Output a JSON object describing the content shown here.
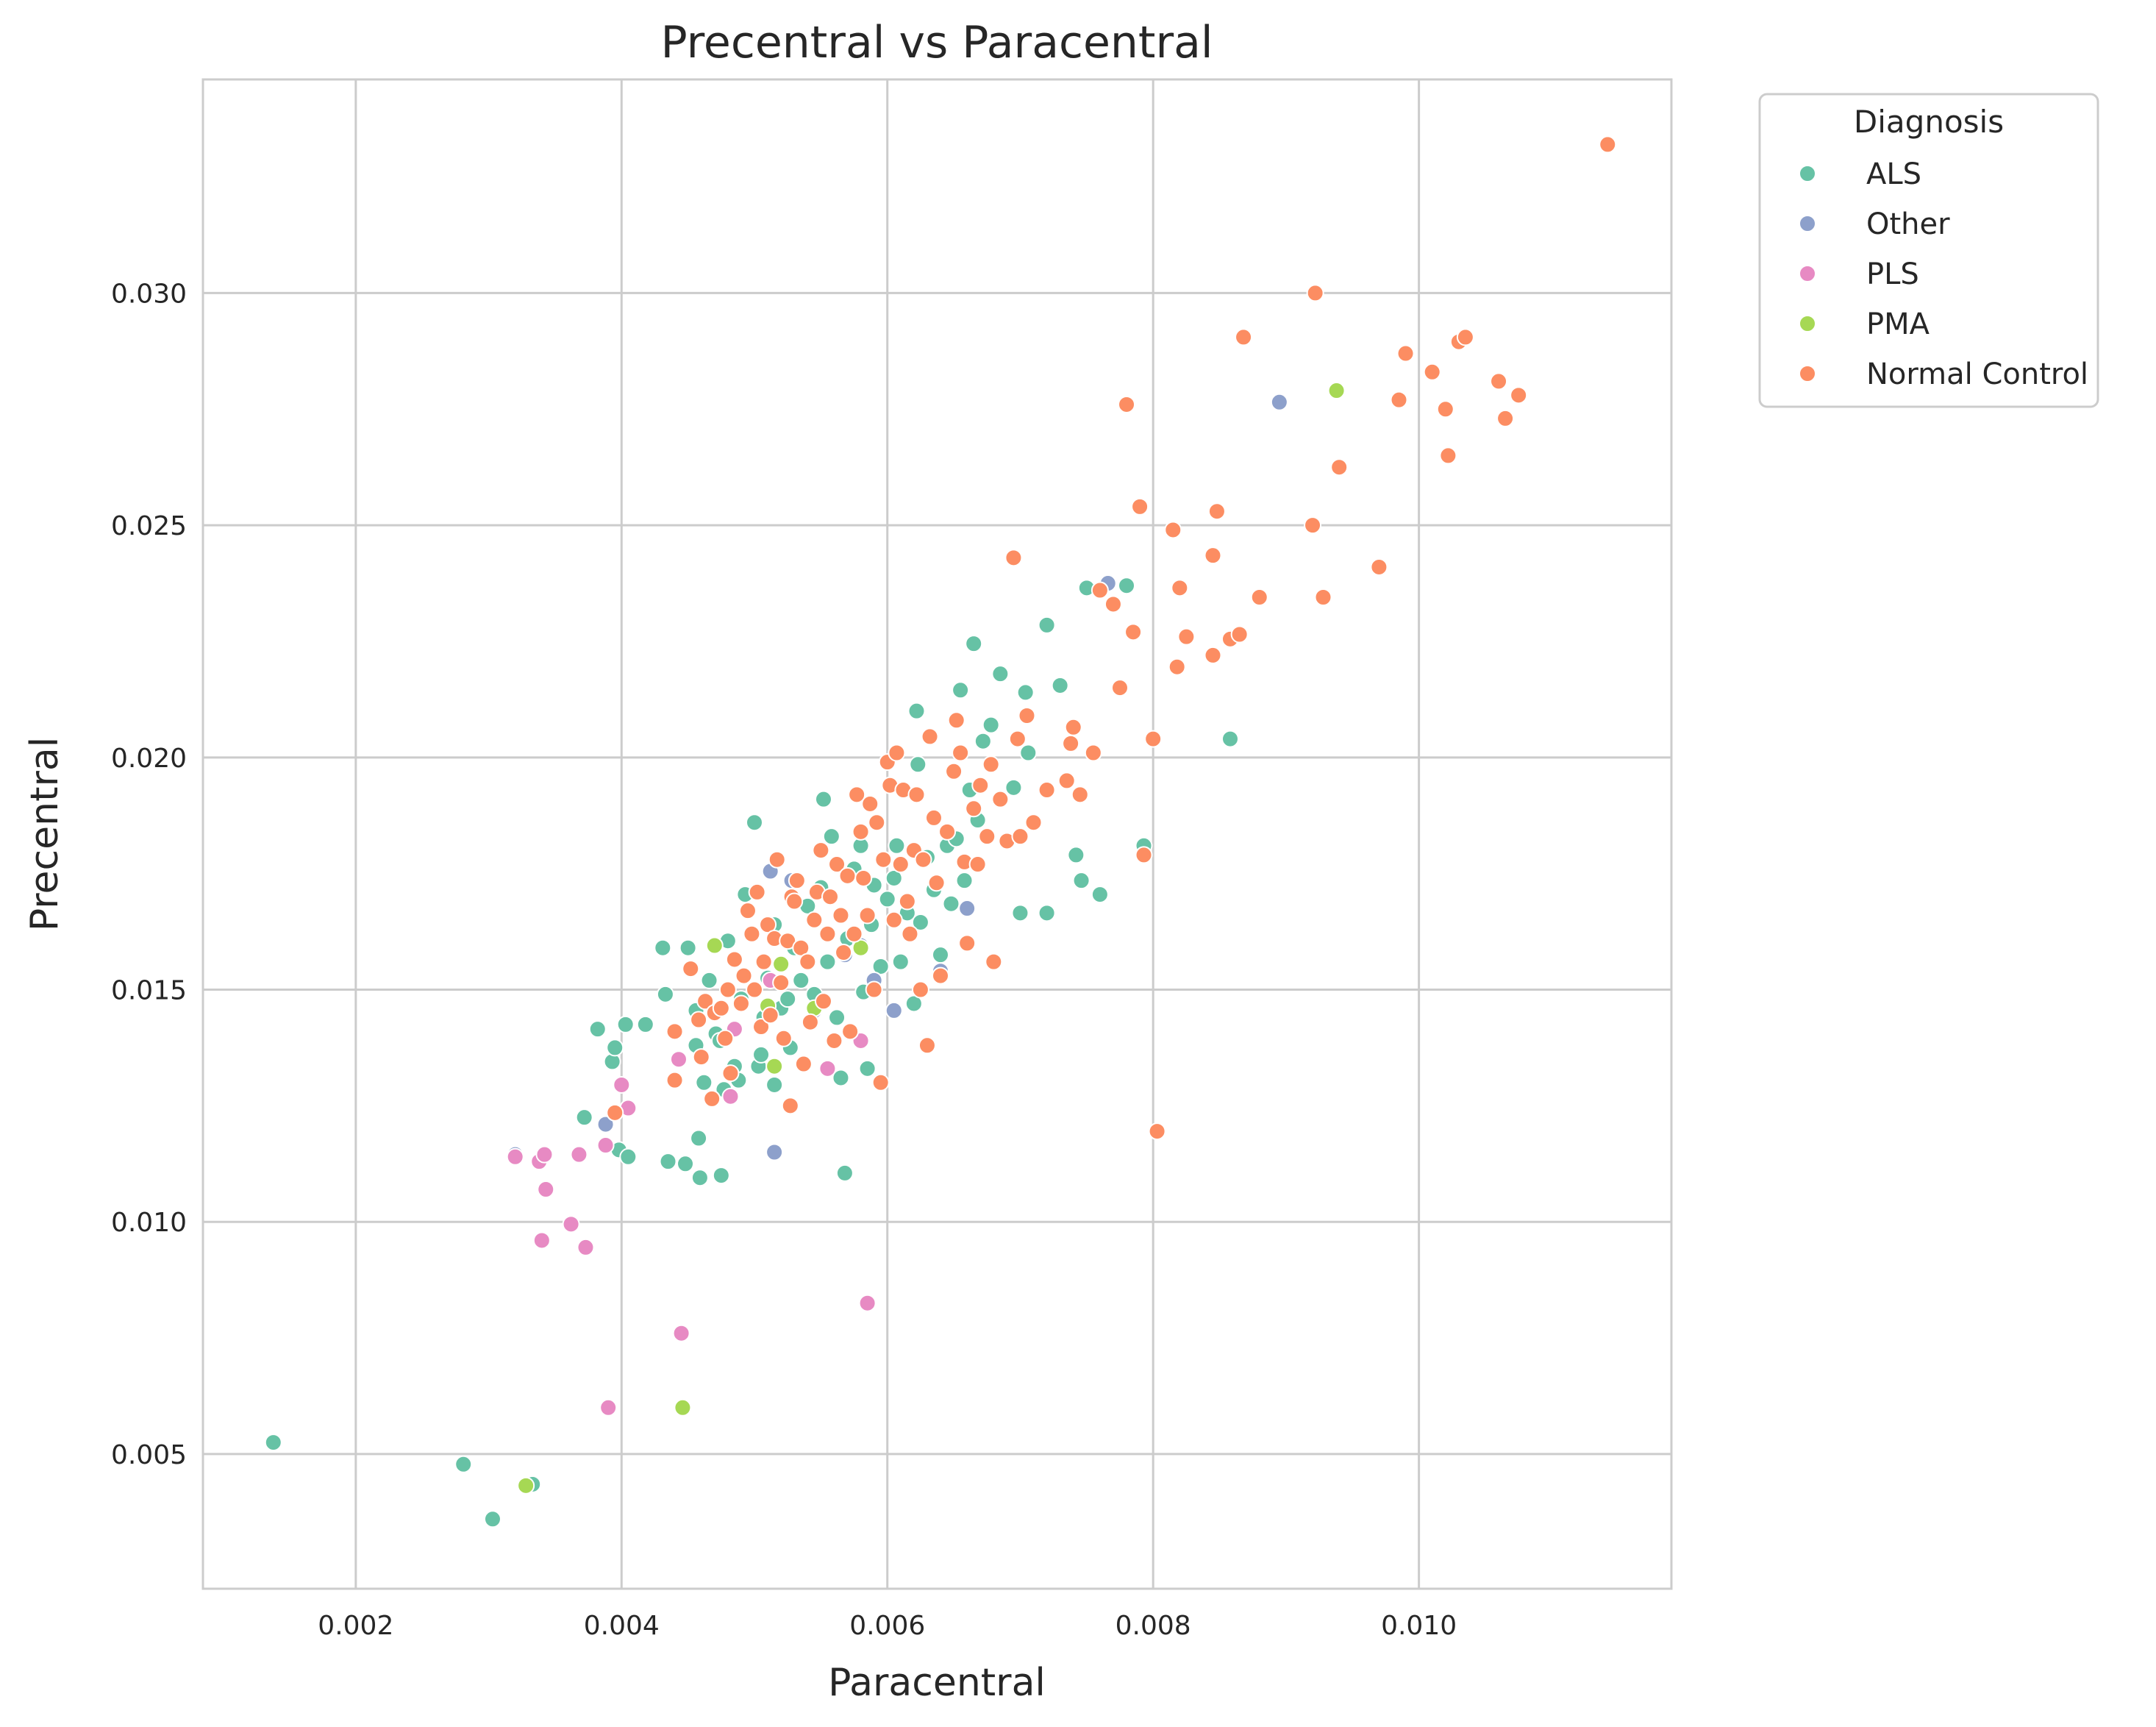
{
  "chart_data": {
    "type": "scatter",
    "title": "Precentral vs Paracentral",
    "xlabel": "Paracentral",
    "ylabel": "Precentral",
    "xlim": [
      0.00085,
      0.0119
    ],
    "ylim": [
      0.0021,
      0.0346
    ],
    "xticks": [
      0.002,
      0.004,
      0.006,
      0.008,
      0.01
    ],
    "xtick_labels": [
      "0.002",
      "0.004",
      "0.006",
      "0.008",
      "0.010"
    ],
    "yticks": [
      0.005,
      0.01,
      0.015,
      0.02,
      0.025,
      0.03
    ],
    "ytick_labels": [
      "0.005",
      "0.010",
      "0.015",
      "0.020",
      "0.025",
      "0.030"
    ],
    "grid": true,
    "legend": {
      "title": "Diagnosis",
      "placement": "outside-top-right"
    },
    "series": [
      {
        "name": "ALS",
        "color": "#66c2a5",
        "points": [
          [
            0.00138,
            0.00525
          ],
          [
            0.00281,
            0.00478
          ],
          [
            0.00303,
            0.0036
          ],
          [
            0.00333,
            0.00435
          ],
          [
            0.0032,
            0.01145
          ],
          [
            0.00372,
            0.01225
          ],
          [
            0.00382,
            0.01415
          ],
          [
            0.00393,
            0.01345
          ],
          [
            0.00395,
            0.01375
          ],
          [
            0.00398,
            0.01155
          ],
          [
            0.00403,
            0.01425
          ],
          [
            0.00405,
            0.0114
          ],
          [
            0.00418,
            0.01425
          ],
          [
            0.00431,
            0.0159
          ],
          [
            0.00433,
            0.0149
          ],
          [
            0.00435,
            0.0113
          ],
          [
            0.00448,
            0.01125
          ],
          [
            0.0045,
            0.0159
          ],
          [
            0.00456,
            0.0138
          ],
          [
            0.00456,
            0.01455
          ],
          [
            0.00458,
            0.0118
          ],
          [
            0.00459,
            0.01095
          ],
          [
            0.00462,
            0.013
          ],
          [
            0.00466,
            0.0152
          ],
          [
            0.00471,
            0.01405
          ],
          [
            0.00474,
            0.0139
          ],
          [
            0.00475,
            0.011
          ],
          [
            0.00477,
            0.01285
          ],
          [
            0.0048,
            0.01605
          ],
          [
            0.00485,
            0.01335
          ],
          [
            0.00488,
            0.01305
          ],
          [
            0.0049,
            0.0148
          ],
          [
            0.00493,
            0.01705
          ],
          [
            0.005,
            0.0186
          ],
          [
            0.00503,
            0.01335
          ],
          [
            0.00505,
            0.0136
          ],
          [
            0.00507,
            0.0144
          ],
          [
            0.0051,
            0.01525
          ],
          [
            0.00515,
            0.0164
          ],
          [
            0.00515,
            0.01295
          ],
          [
            0.0052,
            0.0146
          ],
          [
            0.00525,
            0.0148
          ],
          [
            0.00527,
            0.01375
          ],
          [
            0.0053,
            0.0159
          ],
          [
            0.00535,
            0.0152
          ],
          [
            0.0054,
            0.0168
          ],
          [
            0.00545,
            0.0149
          ],
          [
            0.0055,
            0.0172
          ],
          [
            0.00552,
            0.0191
          ],
          [
            0.00555,
            0.0156
          ],
          [
            0.00558,
            0.0183
          ],
          [
            0.00562,
            0.0144
          ],
          [
            0.00565,
            0.0131
          ],
          [
            0.00568,
            0.01105
          ],
          [
            0.0057,
            0.0161
          ],
          [
            0.00575,
            0.0176
          ],
          [
            0.0058,
            0.0181
          ],
          [
            0.00582,
            0.01495
          ],
          [
            0.00585,
            0.0133
          ],
          [
            0.00588,
            0.0164
          ],
          [
            0.0059,
            0.01725
          ],
          [
            0.00595,
            0.0155
          ],
          [
            0.006,
            0.01695
          ],
          [
            0.00605,
            0.0174
          ],
          [
            0.00607,
            0.0181
          ],
          [
            0.0061,
            0.0156
          ],
          [
            0.00615,
            0.01665
          ],
          [
            0.0062,
            0.0147
          ],
          [
            0.00622,
            0.021
          ],
          [
            0.00623,
            0.01985
          ],
          [
            0.00625,
            0.01645
          ],
          [
            0.0063,
            0.01785
          ],
          [
            0.00635,
            0.01715
          ],
          [
            0.0064,
            0.01575
          ],
          [
            0.00645,
            0.0181
          ],
          [
            0.00648,
            0.01685
          ],
          [
            0.00652,
            0.01825
          ],
          [
            0.00655,
            0.02145
          ],
          [
            0.00658,
            0.01735
          ],
          [
            0.00662,
            0.0193
          ],
          [
            0.00665,
            0.02245
          ],
          [
            0.00668,
            0.01865
          ],
          [
            0.00672,
            0.02035
          ],
          [
            0.00678,
            0.0207
          ],
          [
            0.00685,
            0.0218
          ],
          [
            0.00695,
            0.01935
          ],
          [
            0.007,
            0.01665
          ],
          [
            0.00704,
            0.0214
          ],
          [
            0.00706,
            0.0201
          ],
          [
            0.0072,
            0.01665
          ],
          [
            0.0072,
            0.02285
          ],
          [
            0.0073,
            0.02155
          ],
          [
            0.00742,
            0.0179
          ],
          [
            0.00746,
            0.01735
          ],
          [
            0.0075,
            0.02365
          ],
          [
            0.0076,
            0.01705
          ],
          [
            0.0078,
            0.0237
          ],
          [
            0.00793,
            0.0181
          ],
          [
            0.00858,
            0.0204
          ]
        ]
      },
      {
        "name": "Other",
        "color": "#8da0cb",
        "points": [
          [
            0.0032,
            0.01145
          ],
          [
            0.00388,
            0.0121
          ],
          [
            0.00512,
            0.01755
          ],
          [
            0.00515,
            0.0115
          ],
          [
            0.00528,
            0.01735
          ],
          [
            0.00545,
            0.01455
          ],
          [
            0.00568,
            0.01575
          ],
          [
            0.0058,
            0.01595
          ],
          [
            0.0059,
            0.0152
          ],
          [
            0.00605,
            0.01455
          ],
          [
            0.0064,
            0.0154
          ],
          [
            0.0066,
            0.01675
          ],
          [
            0.00766,
            0.02375
          ],
          [
            0.00895,
            0.02765
          ]
        ]
      },
      {
        "name": "PLS",
        "color": "#e78ac3",
        "points": [
          [
            0.0032,
            0.0114
          ],
          [
            0.00338,
            0.0113
          ],
          [
            0.0034,
            0.0096
          ],
          [
            0.00342,
            0.01145
          ],
          [
            0.00343,
            0.0107
          ],
          [
            0.00362,
            0.00995
          ],
          [
            0.00368,
            0.01145
          ],
          [
            0.00373,
            0.00945
          ],
          [
            0.00388,
            0.01165
          ],
          [
            0.0039,
            0.006
          ],
          [
            0.004,
            0.01295
          ],
          [
            0.00405,
            0.01245
          ],
          [
            0.00443,
            0.0135
          ],
          [
            0.00445,
            0.0076
          ],
          [
            0.00482,
            0.0127
          ],
          [
            0.00485,
            0.01415
          ],
          [
            0.00512,
            0.0152
          ],
          [
            0.00555,
            0.0133
          ],
          [
            0.0058,
            0.0139
          ],
          [
            0.00585,
            0.00825
          ]
        ]
      },
      {
        "name": "PMA",
        "color": "#a6d854",
        "points": [
          [
            0.00328,
            0.00432
          ],
          [
            0.00446,
            0.006
          ],
          [
            0.0047,
            0.01595
          ],
          [
            0.0051,
            0.01465
          ],
          [
            0.00515,
            0.01335
          ],
          [
            0.0052,
            0.01555
          ],
          [
            0.00545,
            0.0146
          ],
          [
            0.0058,
            0.0159
          ],
          [
            0.00938,
            0.0279
          ]
        ]
      },
      {
        "name": "Normal Control",
        "color": "#fc8d62",
        "points": [
          [
            0.00395,
            0.01235
          ],
          [
            0.0044,
            0.0141
          ],
          [
            0.0044,
            0.01305
          ],
          [
            0.00452,
            0.01545
          ],
          [
            0.00458,
            0.01435
          ],
          [
            0.0046,
            0.01355
          ],
          [
            0.00463,
            0.01475
          ],
          [
            0.00468,
            0.01265
          ],
          [
            0.0047,
            0.0145
          ],
          [
            0.00475,
            0.0146
          ],
          [
            0.00478,
            0.01395
          ],
          [
            0.0048,
            0.015
          ],
          [
            0.00482,
            0.0132
          ],
          [
            0.00485,
            0.01565
          ],
          [
            0.0049,
            0.0147
          ],
          [
            0.00492,
            0.0153
          ],
          [
            0.00495,
            0.0167
          ],
          [
            0.00498,
            0.0162
          ],
          [
            0.005,
            0.015
          ],
          [
            0.00502,
            0.0171
          ],
          [
            0.00505,
            0.0142
          ],
          [
            0.00507,
            0.0156
          ],
          [
            0.0051,
            0.0164
          ],
          [
            0.00512,
            0.01445
          ],
          [
            0.00515,
            0.0161
          ],
          [
            0.00517,
            0.0178
          ],
          [
            0.0052,
            0.01515
          ],
          [
            0.00522,
            0.01395
          ],
          [
            0.00525,
            0.01605
          ],
          [
            0.00527,
            0.0125
          ],
          [
            0.00528,
            0.017
          ],
          [
            0.0053,
            0.0169
          ],
          [
            0.00532,
            0.01735
          ],
          [
            0.00535,
            0.0159
          ],
          [
            0.00537,
            0.0134
          ],
          [
            0.0054,
            0.0156
          ],
          [
            0.00542,
            0.0143
          ],
          [
            0.00545,
            0.0165
          ],
          [
            0.00547,
            0.0171
          ],
          [
            0.0055,
            0.018
          ],
          [
            0.00552,
            0.01475
          ],
          [
            0.00555,
            0.0162
          ],
          [
            0.00557,
            0.017
          ],
          [
            0.0056,
            0.0139
          ],
          [
            0.00562,
            0.0177
          ],
          [
            0.00565,
            0.0166
          ],
          [
            0.00567,
            0.0158
          ],
          [
            0.0057,
            0.01745
          ],
          [
            0.00572,
            0.0141
          ],
          [
            0.00575,
            0.0162
          ],
          [
            0.00577,
            0.0192
          ],
          [
            0.0058,
            0.0184
          ],
          [
            0.00582,
            0.0174
          ],
          [
            0.00585,
            0.0166
          ],
          [
            0.00587,
            0.019
          ],
          [
            0.0059,
            0.015
          ],
          [
            0.00592,
            0.0186
          ],
          [
            0.00595,
            0.013
          ],
          [
            0.00597,
            0.0178
          ],
          [
            0.006,
            0.0199
          ],
          [
            0.00602,
            0.0194
          ],
          [
            0.00605,
            0.0165
          ],
          [
            0.00607,
            0.0201
          ],
          [
            0.0061,
            0.0177
          ],
          [
            0.00612,
            0.0193
          ],
          [
            0.00615,
            0.0169
          ],
          [
            0.00617,
            0.0162
          ],
          [
            0.0062,
            0.018
          ],
          [
            0.00622,
            0.0192
          ],
          [
            0.00625,
            0.015
          ],
          [
            0.00627,
            0.0178
          ],
          [
            0.0063,
            0.0138
          ],
          [
            0.00632,
            0.02045
          ],
          [
            0.00635,
            0.0187
          ],
          [
            0.00637,
            0.0173
          ],
          [
            0.0064,
            0.0153
          ],
          [
            0.00645,
            0.0184
          ],
          [
            0.0065,
            0.0197
          ],
          [
            0.00652,
            0.0208
          ],
          [
            0.00655,
            0.0201
          ],
          [
            0.00658,
            0.01775
          ],
          [
            0.0066,
            0.016
          ],
          [
            0.00665,
            0.0189
          ],
          [
            0.00668,
            0.0177
          ],
          [
            0.0067,
            0.0194
          ],
          [
            0.00675,
            0.0183
          ],
          [
            0.00678,
            0.01985
          ],
          [
            0.0068,
            0.0156
          ],
          [
            0.00685,
            0.0191
          ],
          [
            0.0069,
            0.0182
          ],
          [
            0.00695,
            0.0243
          ],
          [
            0.00698,
            0.0204
          ],
          [
            0.007,
            0.0183
          ],
          [
            0.00705,
            0.0209
          ],
          [
            0.0071,
            0.0186
          ],
          [
            0.0072,
            0.0193
          ],
          [
            0.00735,
            0.0195
          ],
          [
            0.00738,
            0.0203
          ],
          [
            0.0074,
            0.02065
          ],
          [
            0.00745,
            0.0192
          ],
          [
            0.00755,
            0.0201
          ],
          [
            0.0076,
            0.0236
          ],
          [
            0.0077,
            0.0233
          ],
          [
            0.00775,
            0.0215
          ],
          [
            0.0078,
            0.0276
          ],
          [
            0.00785,
            0.0227
          ],
          [
            0.0079,
            0.0254
          ],
          [
            0.00793,
            0.0179
          ],
          [
            0.008,
            0.0204
          ],
          [
            0.00803,
            0.01195
          ],
          [
            0.00815,
            0.0249
          ],
          [
            0.00818,
            0.02195
          ],
          [
            0.0082,
            0.02365
          ],
          [
            0.00825,
            0.0226
          ],
          [
            0.00845,
            0.0222
          ],
          [
            0.00845,
            0.02435
          ],
          [
            0.00848,
            0.0253
          ],
          [
            0.00858,
            0.02255
          ],
          [
            0.00865,
            0.02265
          ],
          [
            0.00868,
            0.02905
          ],
          [
            0.0088,
            0.02345
          ],
          [
            0.0092,
            0.025
          ],
          [
            0.00922,
            0.03
          ],
          [
            0.00928,
            0.02345
          ],
          [
            0.0094,
            0.02625
          ],
          [
            0.0097,
            0.0241
          ],
          [
            0.00985,
            0.0277
          ],
          [
            0.0099,
            0.0287
          ],
          [
            0.0101,
            0.0283
          ],
          [
            0.0102,
            0.0275
          ],
          [
            0.01022,
            0.0265
          ],
          [
            0.0103,
            0.02895
          ],
          [
            0.01035,
            0.02905
          ],
          [
            0.0106,
            0.0281
          ],
          [
            0.01065,
            0.0273
          ],
          [
            0.01075,
            0.0278
          ],
          [
            0.01142,
            0.0332
          ]
        ]
      }
    ]
  }
}
